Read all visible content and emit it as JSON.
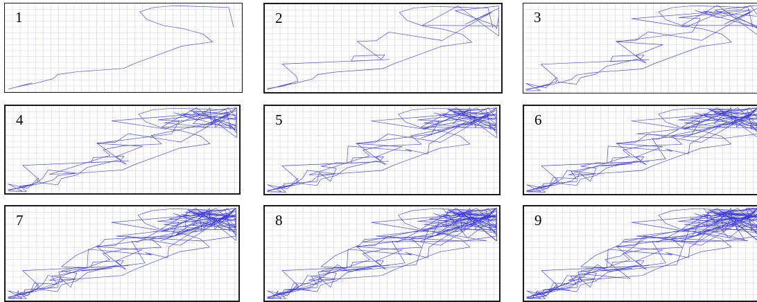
{
  "colors": {
    "trace": "#3a3ad6",
    "grid": "#cfcfe4",
    "border": "#1a1a1a",
    "background": "#ffffff"
  },
  "chart_data": [
    {
      "type": "line",
      "panel_label": "1",
      "grid": true,
      "x_range": [
        0,
        100
      ],
      "y_range": [
        0,
        100
      ],
      "trace_count": 1
    },
    {
      "type": "line",
      "panel_label": "2",
      "grid": true,
      "x_range": [
        0,
        100
      ],
      "y_range": [
        0,
        100
      ],
      "trace_count": 2
    },
    {
      "type": "line",
      "panel_label": "3",
      "grid": true,
      "x_range": [
        0,
        100
      ],
      "y_range": [
        0,
        100
      ],
      "trace_count": 3
    },
    {
      "type": "line",
      "panel_label": "4",
      "grid": true,
      "x_range": [
        0,
        100
      ],
      "y_range": [
        0,
        100
      ],
      "trace_count": 4
    },
    {
      "type": "line",
      "panel_label": "5",
      "grid": true,
      "x_range": [
        0,
        100
      ],
      "y_range": [
        0,
        100
      ],
      "trace_count": 5
    },
    {
      "type": "line",
      "panel_label": "6",
      "grid": true,
      "x_range": [
        0,
        100
      ],
      "y_range": [
        0,
        100
      ],
      "trace_count": 6
    },
    {
      "type": "line",
      "panel_label": "7",
      "grid": true,
      "x_range": [
        0,
        100
      ],
      "y_range": [
        0,
        100
      ],
      "trace_count": 7
    },
    {
      "type": "line",
      "panel_label": "8",
      "grid": true,
      "x_range": [
        0,
        100
      ],
      "y_range": [
        0,
        100
      ],
      "trace_count": 8
    },
    {
      "type": "line",
      "panel_label": "9",
      "grid": true,
      "x_range": [
        0,
        100
      ],
      "y_range": [
        0,
        100
      ],
      "trace_count": 9
    }
  ]
}
